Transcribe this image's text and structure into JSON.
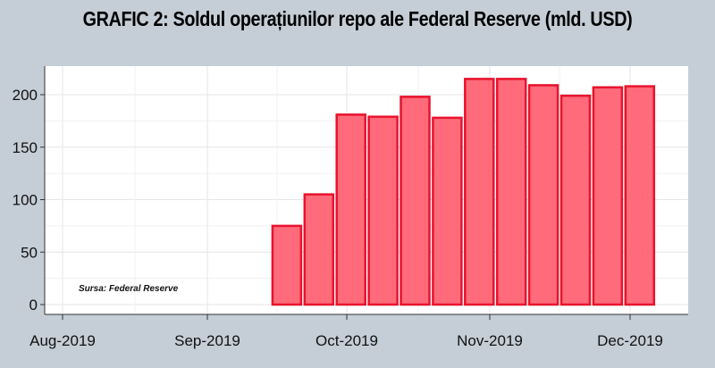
{
  "title": "GRAFIC 2: Soldul operațiunilor repo ale Federal Reserve (mld. USD)",
  "source": "Sursa: Federal Reserve",
  "colors": {
    "background": "#c5cdd6",
    "plot_background": "#ffffff",
    "bar_fill": "#ff6b7a",
    "bar_stroke": "#e8132c",
    "grid": "#e6e6e6"
  },
  "chart_data": {
    "type": "bar",
    "title": "GRAFIC 2: Soldul operațiunilor repo ale Federal Reserve (mld. USD)",
    "xlabel": "",
    "ylabel": "",
    "ylim": [
      -8,
      228
    ],
    "yticks": [
      0,
      50,
      100,
      150,
      200
    ],
    "xticks": [
      "Aug-2019",
      "Sep-2019",
      "Oct-2019",
      "Nov-2019",
      "Dec-2019"
    ],
    "grid": true,
    "legend": "none",
    "values": [
      0,
      0,
      0,
      0,
      0,
      0,
      75,
      105,
      181,
      179,
      198,
      178,
      215,
      215,
      209,
      199,
      207,
      208
    ]
  }
}
